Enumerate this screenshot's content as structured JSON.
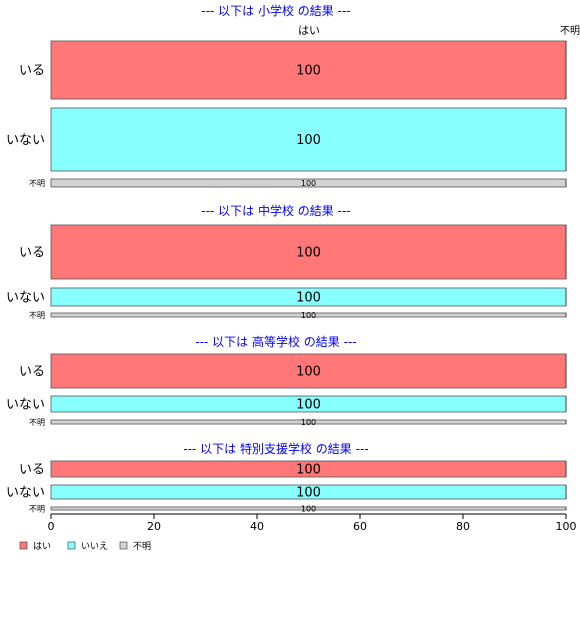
{
  "chart_data": {
    "type": "bar",
    "orientation": "horizontal",
    "stacked": true,
    "xlim": [
      0,
      100
    ],
    "xticks": [
      0,
      20,
      40,
      60,
      80,
      100
    ],
    "column_labels": [
      "はい",
      "不明"
    ],
    "series_colors": {
      "はい": "#ff7777",
      "いいえ": "#88ffff",
      "不明": "#d3d3d3"
    },
    "legend": {
      "position": "bottom-left",
      "entries": [
        "はい",
        "いいえ",
        "不明"
      ]
    },
    "panels": [
      {
        "title": "--- 以下は 小学校 の結果 ---",
        "rows": [
          {
            "label": "いる",
            "series": "はい",
            "value": 100
          },
          {
            "label": "いない",
            "series": "いいえ",
            "value": 100
          },
          {
            "label": "不明",
            "series": "不明",
            "value": 100
          }
        ]
      },
      {
        "title": "--- 以下は 中学校 の結果 ---",
        "rows": [
          {
            "label": "いる",
            "series": "はい",
            "value": 100
          },
          {
            "label": "いない",
            "series": "いいえ",
            "value": 100
          },
          {
            "label": "不明",
            "series": "不明",
            "value": 100
          }
        ]
      },
      {
        "title": "--- 以下は 高等学校 の結果 ---",
        "rows": [
          {
            "label": "いる",
            "series": "はい",
            "value": 100
          },
          {
            "label": "いない",
            "series": "いいえ",
            "value": 100
          },
          {
            "label": "不明",
            "series": "不明",
            "value": 100
          }
        ]
      },
      {
        "title": "--- 以下は 特別支援学校 の結果 ---",
        "rows": [
          {
            "label": "いる",
            "series": "はい",
            "value": 100
          },
          {
            "label": "いない",
            "series": "いいえ",
            "value": 100
          },
          {
            "label": "不明",
            "series": "不明",
            "value": 100
          }
        ]
      }
    ]
  }
}
